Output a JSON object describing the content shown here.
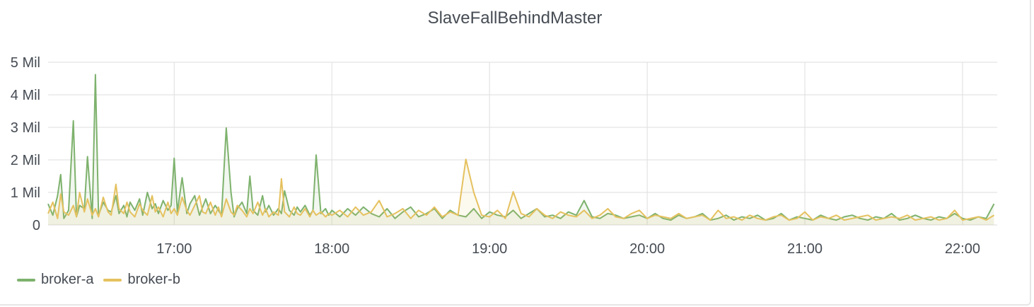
{
  "panel": {
    "title": "SlaveFallBehindMaster"
  },
  "chart_data": {
    "type": "line",
    "title": "SlaveFallBehindMaster",
    "xlabel": "",
    "ylabel": "",
    "x_range": [
      16.2,
      22.22
    ],
    "xlim_hours": [
      16.2,
      22.22
    ],
    "ylim": [
      0,
      5
    ],
    "y_ticks": [
      0,
      1,
      2,
      3,
      4,
      5
    ],
    "y_tick_labels": [
      "0",
      "1 Mil",
      "2 Mil",
      "3 Mil",
      "4 Mil",
      "5 Mil"
    ],
    "x_ticks": [
      17,
      18,
      19,
      20,
      21,
      22
    ],
    "x_tick_labels": [
      "17:00",
      "18:00",
      "19:00",
      "20:00",
      "21:00",
      "22:00"
    ],
    "grid": true,
    "legend_position": "bottom-left",
    "series": [
      {
        "name": "broker-a",
        "color": "#7eb26d",
        "x": [
          16.2,
          16.23,
          16.26,
          16.28,
          16.3,
          16.33,
          16.36,
          16.38,
          16.4,
          16.43,
          16.45,
          16.48,
          16.5,
          16.52,
          16.55,
          16.58,
          16.6,
          16.63,
          16.65,
          16.68,
          16.7,
          16.72,
          16.75,
          16.78,
          16.8,
          16.83,
          16.86,
          16.88,
          16.9,
          16.93,
          16.96,
          16.98,
          17.0,
          17.02,
          17.05,
          17.08,
          17.1,
          17.13,
          17.16,
          17.18,
          17.2,
          17.23,
          17.26,
          17.28,
          17.3,
          17.33,
          17.36,
          17.38,
          17.4,
          17.43,
          17.46,
          17.48,
          17.5,
          17.53,
          17.56,
          17.58,
          17.6,
          17.63,
          17.66,
          17.68,
          17.7,
          17.73,
          17.76,
          17.78,
          17.8,
          17.83,
          17.86,
          17.88,
          17.9,
          17.93,
          17.96,
          17.98,
          18.0,
          18.05,
          18.1,
          18.15,
          18.2,
          18.25,
          18.3,
          18.35,
          18.4,
          18.45,
          18.5,
          18.55,
          18.6,
          18.65,
          18.7,
          18.75,
          18.8,
          18.85,
          18.9,
          18.95,
          19.0,
          19.05,
          19.1,
          19.15,
          19.2,
          19.25,
          19.3,
          19.35,
          19.4,
          19.45,
          19.5,
          19.55,
          19.6,
          19.65,
          19.7,
          19.75,
          19.8,
          19.85,
          19.9,
          19.95,
          20.0,
          20.05,
          20.1,
          20.15,
          20.2,
          20.25,
          20.3,
          20.35,
          20.4,
          20.45,
          20.5,
          20.55,
          20.6,
          20.65,
          20.7,
          20.75,
          20.8,
          20.85,
          20.9,
          20.95,
          21.0,
          21.05,
          21.1,
          21.15,
          21.2,
          21.25,
          21.3,
          21.35,
          21.4,
          21.45,
          21.5,
          21.55,
          21.6,
          21.65,
          21.7,
          21.75,
          21.8,
          21.85,
          21.9,
          21.95,
          22.0,
          22.05,
          22.1,
          22.15,
          22.2
        ],
        "values": [
          0.65,
          0.3,
          0.9,
          1.55,
          0.2,
          0.45,
          3.2,
          0.25,
          0.6,
          0.5,
          2.1,
          0.2,
          4.62,
          0.3,
          0.7,
          0.45,
          0.4,
          0.9,
          0.35,
          0.6,
          0.25,
          0.7,
          0.45,
          0.8,
          0.3,
          1.0,
          0.5,
          0.65,
          0.35,
          0.75,
          0.45,
          0.6,
          2.05,
          0.4,
          1.45,
          0.35,
          0.65,
          0.9,
          0.3,
          0.55,
          0.8,
          0.35,
          0.6,
          0.45,
          0.3,
          2.98,
          1.0,
          0.25,
          0.5,
          0.7,
          0.35,
          1.5,
          0.45,
          0.3,
          0.9,
          0.4,
          0.6,
          0.3,
          0.5,
          0.35,
          1.05,
          0.45,
          0.3,
          0.55,
          0.4,
          0.6,
          0.3,
          0.45,
          2.15,
          0.35,
          0.5,
          0.3,
          0.45,
          0.25,
          0.5,
          0.3,
          0.55,
          0.35,
          0.25,
          0.5,
          0.2,
          0.4,
          0.55,
          0.25,
          0.35,
          0.5,
          0.2,
          0.45,
          0.3,
          0.25,
          0.5,
          0.2,
          0.4,
          0.3,
          0.25,
          0.45,
          0.2,
          0.35,
          0.5,
          0.25,
          0.3,
          0.2,
          0.4,
          0.3,
          0.75,
          0.25,
          0.2,
          0.35,
          0.3,
          0.2,
          0.25,
          0.3,
          0.2,
          0.35,
          0.2,
          0.15,
          0.3,
          0.2,
          0.25,
          0.35,
          0.15,
          0.2,
          0.3,
          0.15,
          0.25,
          0.2,
          0.3,
          0.15,
          0.2,
          0.35,
          0.15,
          0.25,
          0.2,
          0.15,
          0.3,
          0.2,
          0.15,
          0.25,
          0.3,
          0.2,
          0.15,
          0.25,
          0.2,
          0.35,
          0.15,
          0.2,
          0.3,
          0.2,
          0.15,
          0.25,
          0.2,
          0.35,
          0.2,
          0.15,
          0.25,
          0.2,
          0.65
        ]
      },
      {
        "name": "broker-b",
        "color": "#e5c15f",
        "x": [
          16.2,
          16.23,
          16.26,
          16.28,
          16.3,
          16.33,
          16.36,
          16.38,
          16.4,
          16.43,
          16.45,
          16.48,
          16.5,
          16.52,
          16.55,
          16.58,
          16.6,
          16.63,
          16.65,
          16.68,
          16.7,
          16.72,
          16.75,
          16.78,
          16.8,
          16.83,
          16.86,
          16.88,
          16.9,
          16.93,
          16.96,
          16.98,
          17.0,
          17.02,
          17.05,
          17.08,
          17.1,
          17.13,
          17.16,
          17.18,
          17.2,
          17.23,
          17.26,
          17.28,
          17.3,
          17.33,
          17.36,
          17.38,
          17.4,
          17.43,
          17.46,
          17.48,
          17.5,
          17.53,
          17.56,
          17.58,
          17.6,
          17.63,
          17.66,
          17.68,
          17.7,
          17.73,
          17.76,
          17.78,
          17.8,
          17.83,
          17.86,
          17.88,
          17.9,
          17.93,
          17.96,
          17.98,
          18.0,
          18.05,
          18.1,
          18.15,
          18.2,
          18.25,
          18.3,
          18.35,
          18.4,
          18.45,
          18.5,
          18.55,
          18.6,
          18.65,
          18.7,
          18.75,
          18.8,
          18.85,
          18.9,
          18.95,
          19.0,
          19.05,
          19.1,
          19.15,
          19.2,
          19.25,
          19.3,
          19.35,
          19.4,
          19.45,
          19.5,
          19.55,
          19.6,
          19.65,
          19.7,
          19.75,
          19.8,
          19.85,
          19.9,
          19.95,
          20.0,
          20.05,
          20.1,
          20.15,
          20.2,
          20.25,
          20.3,
          20.35,
          20.4,
          20.45,
          20.5,
          20.55,
          20.6,
          20.65,
          20.7,
          20.75,
          20.8,
          20.85,
          20.9,
          20.95,
          21.0,
          21.05,
          21.1,
          21.15,
          21.2,
          21.25,
          21.3,
          21.35,
          21.4,
          21.45,
          21.5,
          21.55,
          21.6,
          21.65,
          21.7,
          21.75,
          21.8,
          21.85,
          21.9,
          21.95,
          22.0,
          22.05,
          22.1,
          22.15,
          22.2
        ],
        "values": [
          0.35,
          0.7,
          0.2,
          0.95,
          0.4,
          0.3,
          0.6,
          0.25,
          1.0,
          0.4,
          0.8,
          0.3,
          0.5,
          0.25,
          0.85,
          0.4,
          0.3,
          1.25,
          0.5,
          0.35,
          0.7,
          0.4,
          0.25,
          0.65,
          0.45,
          0.3,
          0.9,
          0.4,
          0.55,
          0.25,
          0.7,
          0.35,
          0.5,
          0.3,
          0.85,
          0.45,
          0.3,
          0.6,
          0.9,
          0.4,
          0.35,
          0.7,
          0.3,
          0.55,
          0.25,
          0.8,
          0.4,
          0.3,
          0.6,
          0.45,
          0.25,
          0.5,
          0.35,
          0.7,
          0.3,
          0.5,
          0.25,
          0.4,
          0.3,
          1.42,
          0.4,
          0.25,
          0.55,
          0.35,
          0.3,
          0.5,
          0.25,
          0.45,
          0.3,
          0.4,
          0.25,
          0.35,
          0.3,
          0.45,
          0.25,
          0.55,
          0.3,
          0.4,
          0.75,
          0.25,
          0.35,
          0.5,
          0.2,
          0.45,
          0.3,
          0.55,
          0.25,
          0.4,
          0.3,
          2.02,
          1.0,
          0.3,
          0.25,
          0.45,
          0.2,
          1.02,
          0.35,
          0.25,
          0.5,
          0.3,
          0.2,
          0.4,
          0.3,
          0.25,
          0.45,
          0.2,
          0.3,
          0.5,
          0.25,
          0.2,
          0.35,
          0.45,
          0.2,
          0.3,
          0.25,
          0.2,
          0.35,
          0.2,
          0.25,
          0.3,
          0.15,
          0.45,
          0.2,
          0.25,
          0.15,
          0.3,
          0.2,
          0.15,
          0.25,
          0.3,
          0.15,
          0.2,
          0.4,
          0.15,
          0.25,
          0.2,
          0.3,
          0.15,
          0.2,
          0.25,
          0.3,
          0.15,
          0.2,
          0.25,
          0.2,
          0.3,
          0.15,
          0.2,
          0.25,
          0.15,
          0.2,
          0.45,
          0.15,
          0.2,
          0.25,
          0.15,
          0.3
        ]
      }
    ]
  }
}
